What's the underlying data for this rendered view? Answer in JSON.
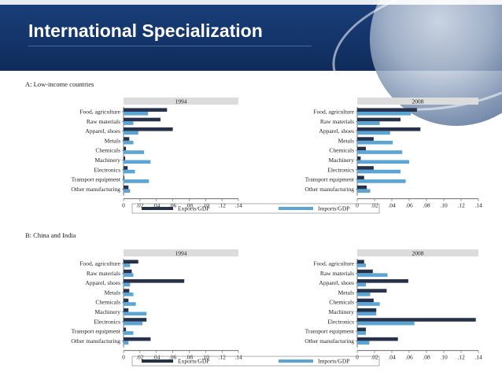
{
  "slide": {
    "title": "International Specialization"
  },
  "colors": {
    "exports": "#26324a",
    "imports": "#5aa5d6",
    "header_bg": "#163a73"
  },
  "legend": {
    "exports_label": "Exports/GDP",
    "imports_label": "Imports/GDP"
  },
  "chart_data": [
    {
      "type": "bar",
      "orientation": "horizontal",
      "panel": "A: Low-income countries",
      "title": "1994",
      "categories": [
        "Food, agriculture",
        "Raw materials",
        "Apparel, shoes",
        "Metals",
        "Chemicals",
        "Machinery",
        "Electronics",
        "Transport equipment",
        "Other manufacturing"
      ],
      "series": [
        {
          "name": "Exports/GDP",
          "values": [
            0.053,
            0.045,
            0.06,
            0.007,
            0.003,
            0.002,
            0.005,
            0.001,
            0.006
          ]
        },
        {
          "name": "Imports/GDP",
          "values": [
            0.03,
            0.012,
            0.018,
            0.012,
            0.025,
            0.033,
            0.014,
            0.031,
            0.008
          ]
        }
      ],
      "xlim": [
        0,
        0.14
      ],
      "xticks": [
        "0",
        ".02",
        ".04",
        ".06",
        ".08",
        ".10",
        ".12",
        ".14"
      ]
    },
    {
      "type": "bar",
      "orientation": "horizontal",
      "title": "2008",
      "categories": [
        "Food, agriculture",
        "Raw materials",
        "Apparel, shoes",
        "Metals",
        "Chemicals",
        "Machinery",
        "Electronics",
        "Transport equipment",
        "Other manufacturing"
      ],
      "series": [
        {
          "name": "Exports/GDP",
          "values": [
            0.069,
            0.05,
            0.073,
            0.019,
            0.01,
            0.004,
            0.019,
            0.008,
            0.011
          ]
        },
        {
          "name": "Imports/GDP",
          "values": [
            0.062,
            0.026,
            0.038,
            0.041,
            0.052,
            0.06,
            0.05,
            0.056,
            0.015
          ]
        }
      ],
      "xlim": [
        0,
        0.14
      ],
      "xticks": [
        "0",
        ".02",
        ".04",
        ".06",
        ".08",
        ".10",
        ".12",
        ".14"
      ]
    },
    {
      "type": "bar",
      "orientation": "horizontal",
      "panel": "B: China and India",
      "title": "1994",
      "categories": [
        "Food, agriculture",
        "Raw materials",
        "Apparel, shoes",
        "Metals",
        "Chemicals",
        "Machinery",
        "Electronics",
        "Transport equipment",
        "Other manufacturing"
      ],
      "series": [
        {
          "name": "Exports/GDP",
          "values": [
            0.018,
            0.01,
            0.074,
            0.007,
            0.006,
            0.006,
            0.028,
            0.003,
            0.033
          ]
        },
        {
          "name": "Imports/GDP",
          "values": [
            0.008,
            0.012,
            0.008,
            0.012,
            0.015,
            0.028,
            0.023,
            0.012,
            0.006
          ]
        }
      ],
      "xlim": [
        0,
        0.14
      ],
      "xticks": [
        "0",
        ".02",
        ".04",
        ".06",
        ".08",
        ".10",
        ".12",
        ".14"
      ]
    },
    {
      "type": "bar",
      "orientation": "horizontal",
      "title": "2008",
      "categories": [
        "Food, agriculture",
        "Raw materials",
        "Apparel, shoes",
        "Metals",
        "Chemicals",
        "Machinery",
        "Electronics",
        "Transport equipment",
        "Other manufacturing"
      ],
      "series": [
        {
          "name": "Exports/GDP",
          "values": [
            0.008,
            0.018,
            0.059,
            0.034,
            0.019,
            0.022,
            0.137,
            0.01,
            0.047
          ]
        },
        {
          "name": "Imports/GDP",
          "values": [
            0.01,
            0.035,
            0.01,
            0.015,
            0.026,
            0.022,
            0.066,
            0.01,
            0.014
          ]
        }
      ],
      "xlim": [
        0,
        0.14
      ],
      "xticks": [
        "0",
        ".02",
        ".04",
        ".06",
        ".08",
        ".10",
        ".12",
        ".14"
      ]
    }
  ]
}
